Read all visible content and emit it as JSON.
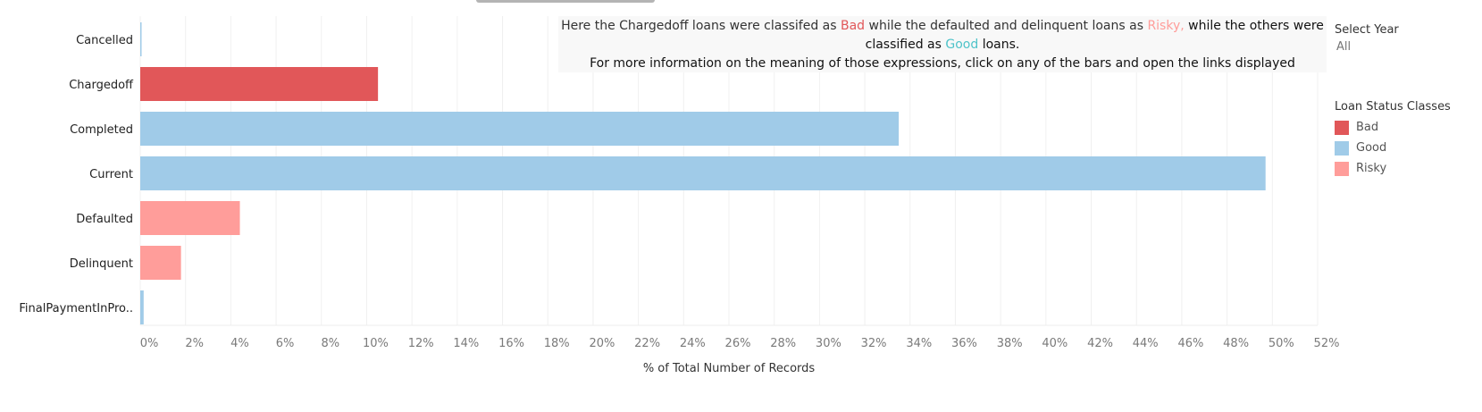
{
  "chart_data": {
    "type": "bar",
    "orientation": "horizontal",
    "categories": [
      "Cancelled",
      "Chargedoff",
      "Completed",
      "Current",
      "Defaulted",
      "Delinquent",
      "FinalPaymentInPro.."
    ],
    "values": [
      0.05,
      10.5,
      33.5,
      49.7,
      4.4,
      1.8,
      0.15
    ],
    "classes": [
      "Good",
      "Bad",
      "Good",
      "Good",
      "Risky",
      "Risky",
      "Good"
    ],
    "xlabel": "% of Total Number of Records",
    "ylabel": "",
    "xlim": [
      0,
      52
    ],
    "xticks": [
      "0%",
      "2%",
      "4%",
      "6%",
      "8%",
      "10%",
      "12%",
      "14%",
      "16%",
      "18%",
      "20%",
      "22%",
      "24%",
      "26%",
      "28%",
      "30%",
      "32%",
      "34%",
      "36%",
      "38%",
      "40%",
      "42%",
      "44%",
      "46%",
      "48%",
      "50%",
      "52%"
    ],
    "grid": true,
    "legend": {
      "title": "Loan Status Classes",
      "placement": "right",
      "items": [
        {
          "label": "Bad",
          "color": "#e15759"
        },
        {
          "label": "Good",
          "color": "#a0cbe8"
        },
        {
          "label": "Risky",
          "color": "#ff9d9a"
        }
      ]
    }
  },
  "annotation": {
    "line1_a": "Here the Chargedoff loans were classifed as ",
    "bad": "Bad",
    "line1_b": " while the defaulted and delinquent loans as ",
    "risky": "Risky,",
    "line1_c": " while the others were",
    "line2_a": "classified as ",
    "good": "Good",
    "line2_b": " loans.",
    "line3": "For more information on the meaning of those expressions, click on any of the bars and open the links displayed"
  },
  "filter": {
    "title": "Select Year",
    "value": "All"
  }
}
